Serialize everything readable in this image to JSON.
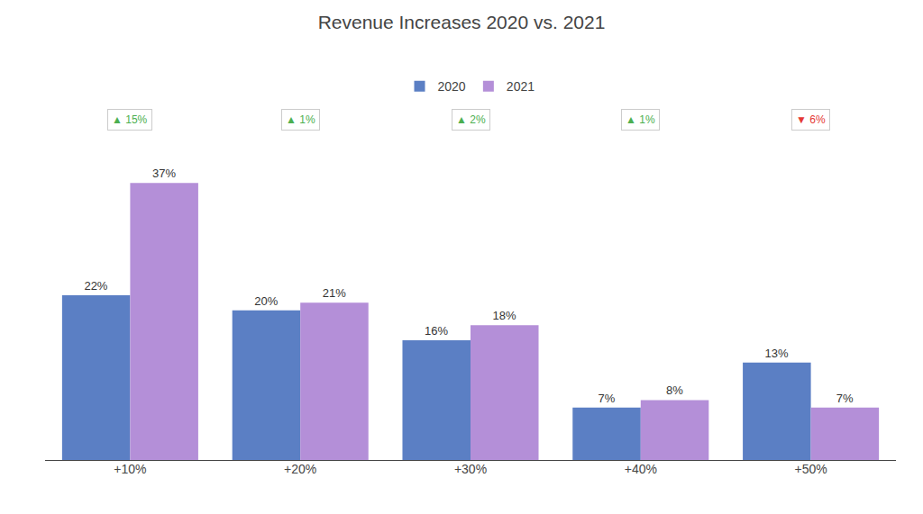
{
  "chart_data": {
    "type": "bar",
    "title": "Revenue Increases 2020 vs. 2021",
    "categories": [
      "+10%",
      "+20%",
      "+30%",
      "+40%",
      "+50%"
    ],
    "series": [
      {
        "name": "2020",
        "color": "#5b7fc4",
        "values": [
          22,
          20,
          16,
          7,
          13
        ],
        "value_labels": [
          "22%",
          "20%",
          "16%",
          "7%",
          "13%"
        ]
      },
      {
        "name": "2021",
        "color": "#b48fd8",
        "values": [
          37,
          21,
          18,
          8,
          7
        ],
        "value_labels": [
          "37%",
          "21%",
          "18%",
          "8%",
          "7%"
        ]
      }
    ],
    "ylim": [
      0,
      44
    ],
    "data_labels": true,
    "tick_labels": "x",
    "grid": false,
    "legend": "top",
    "annotations": [
      {
        "category": "+10%",
        "text": "▲ 15%",
        "value": 15,
        "color": "#4caf50"
      },
      {
        "category": "+20%",
        "text": "▲ 1%",
        "value": 1,
        "color": "#4caf50"
      },
      {
        "category": "+30%",
        "text": "▲ 2%",
        "value": 2,
        "color": "#4caf50"
      },
      {
        "category": "+40%",
        "text": "▲ 1%",
        "value": 1,
        "color": "#4caf50"
      },
      {
        "category": "+50%",
        "text": "▼ 6%",
        "value": -6,
        "color": "#e53935"
      }
    ]
  }
}
